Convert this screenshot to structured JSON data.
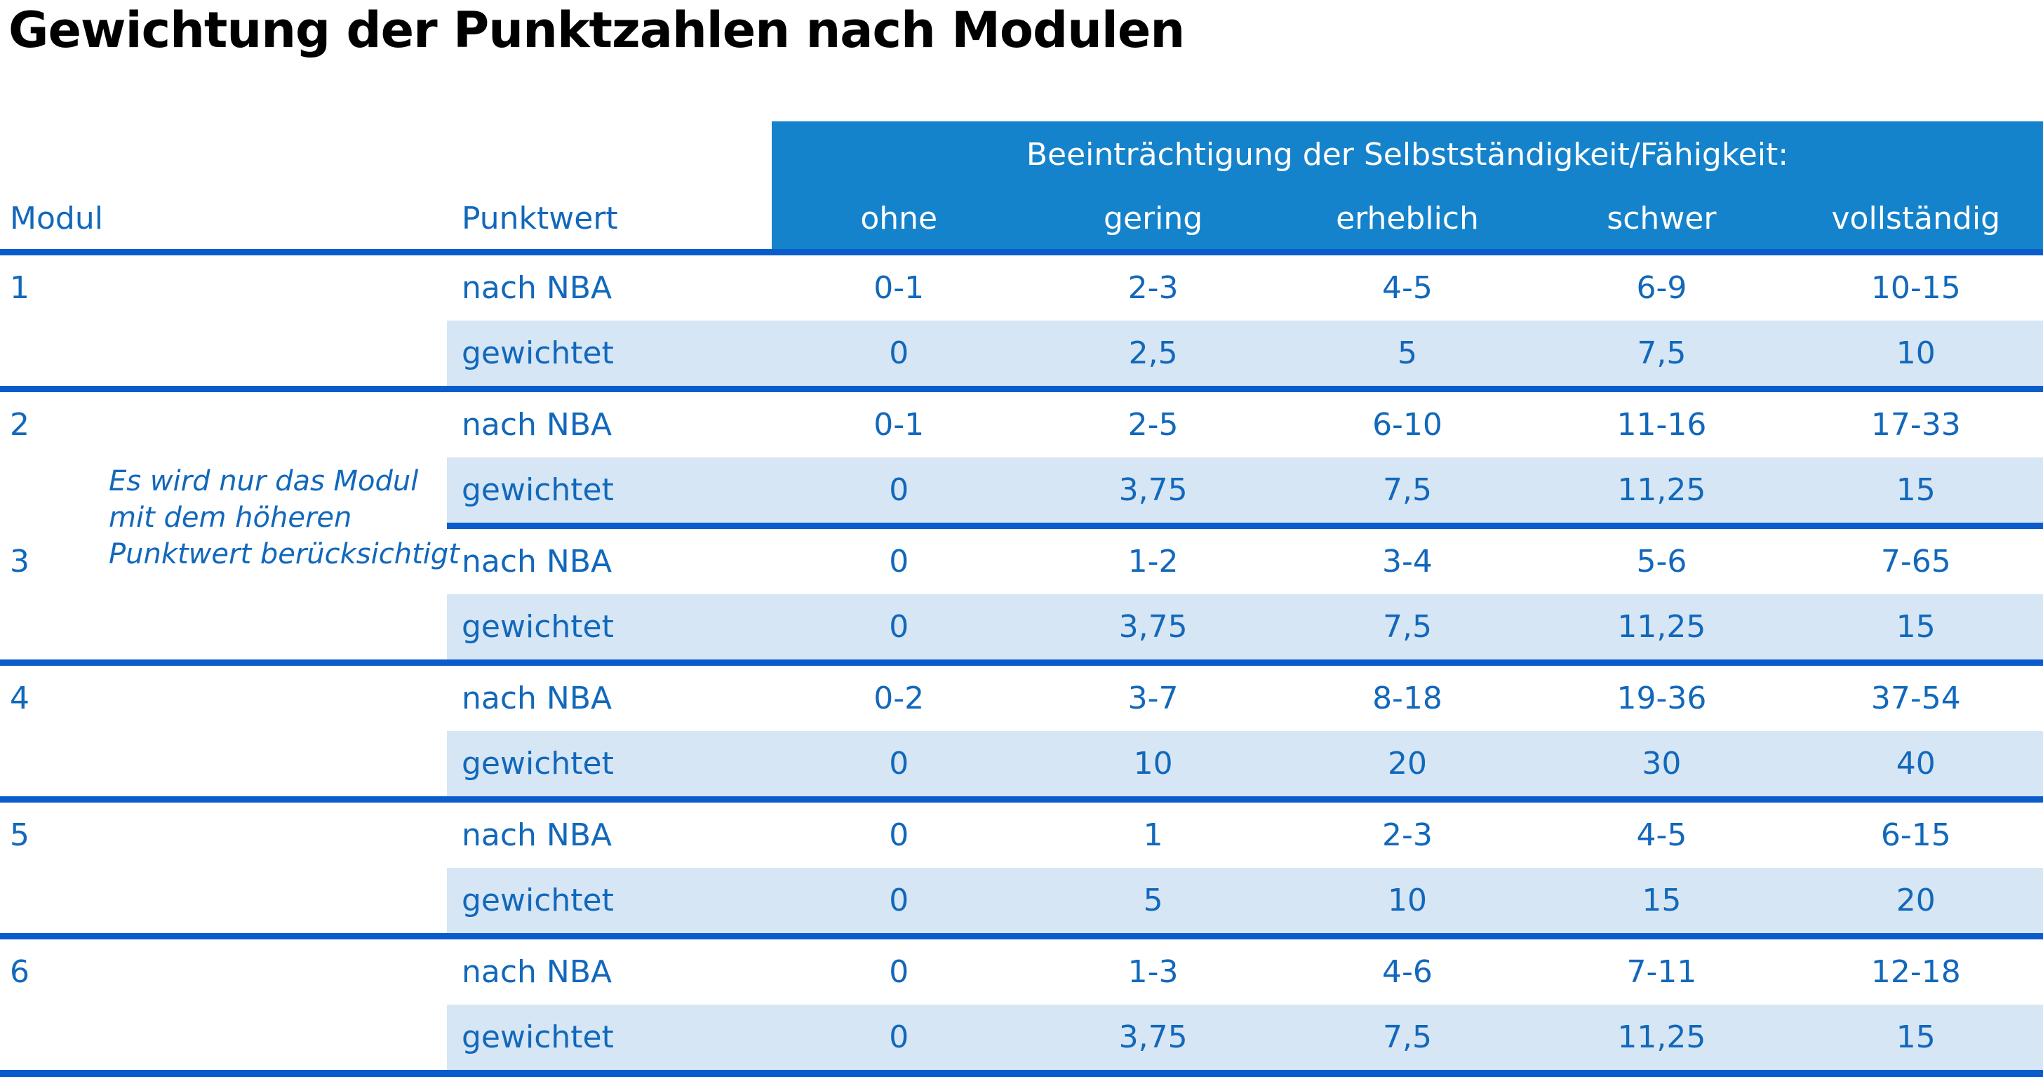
{
  "title": "Gewichtung der Punktzahlen nach Modulen",
  "colors": {
    "header_band_blue": "#1583cb",
    "separator_line_blue": "#0a5ccd",
    "weighted_row_light_blue": "#d6e6f4",
    "text_blue": "#1268bb",
    "title_black": "#000000"
  },
  "table": {
    "impairment_header": "Beeinträchtigung der Selbstständigkeit/Fähigkeit:",
    "col_headers": {
      "modul": "Modul",
      "punktwert": "Punktwert"
    },
    "severity_levels": [
      "ohne",
      "gering",
      "erheblich",
      "schwer",
      "vollständig"
    ],
    "row_labels": {
      "nach_nba": "nach NBA",
      "gewichtet": "gewichtet"
    },
    "note": "Es wird nur das Modul\nmit dem höheren\nPunktwert berücksichtigt",
    "modules": [
      {
        "number": "1",
        "nach_nba": [
          "0-1",
          "2-3",
          "4-5",
          "6-9",
          "10-15"
        ],
        "gewichtet": [
          "0",
          "2,5",
          "5",
          "7,5",
          "10"
        ]
      },
      {
        "number": "2",
        "nach_nba": [
          "0-1",
          "2-5",
          "6-10",
          "11-16",
          "17-33"
        ],
        "gewichtet": [
          "0",
          "3,75",
          "7,5",
          "11,25",
          "15"
        ]
      },
      {
        "number": "3",
        "nach_nba": [
          "0",
          "1-2",
          "3-4",
          "5-6",
          "7-65"
        ],
        "gewichtet": [
          "0",
          "3,75",
          "7,5",
          "11,25",
          "15"
        ]
      },
      {
        "number": "4",
        "nach_nba": [
          "0-2",
          "3-7",
          "8-18",
          "19-36",
          "37-54"
        ],
        "gewichtet": [
          "0",
          "10",
          "20",
          "30",
          "40"
        ]
      },
      {
        "number": "5",
        "nach_nba": [
          "0",
          "1",
          "2-3",
          "4-5",
          "6-15"
        ],
        "gewichtet": [
          "0",
          "5",
          "10",
          "15",
          "20"
        ]
      },
      {
        "number": "6",
        "nach_nba": [
          "0",
          "1-3",
          "4-6",
          "7-11",
          "12-18"
        ],
        "gewichtet": [
          "0",
          "3,75",
          "7,5",
          "11,25",
          "15"
        ]
      }
    ]
  }
}
